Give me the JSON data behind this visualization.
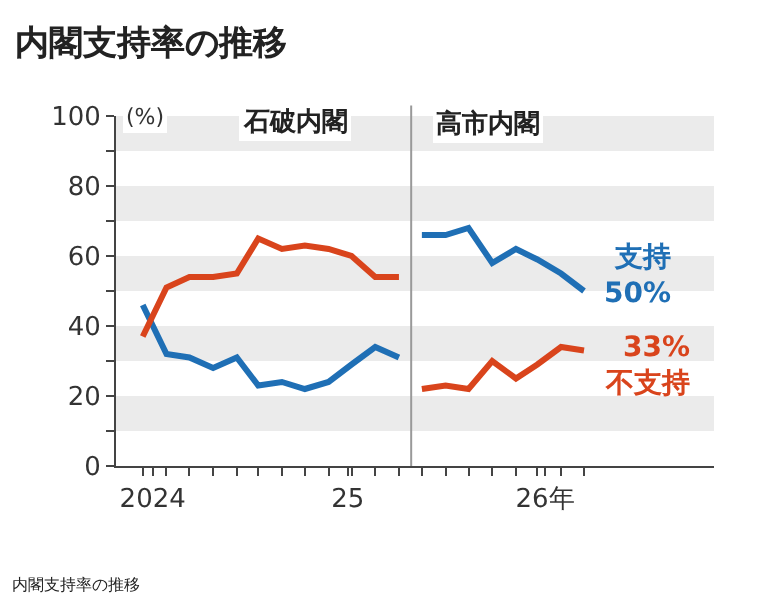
{
  "chart_data": {
    "type": "line",
    "title": "内閣支持率の推移",
    "ylabel": "(%)",
    "series": [
      {
        "color": "#1f6fb5",
        "x": [
          "2024-10-15",
          "2024-11-15",
          "2024-12-15",
          "2025-01-15",
          "2025-02-15",
          "2025-03-15",
          "2025-04-15",
          "2025-05-15",
          "2025-06-15",
          "2025-07-15",
          "2025-08-15",
          "2025-09-15"
        ],
        "values": [
          46,
          32,
          31,
          28,
          31,
          23,
          24,
          22,
          24,
          29,
          34,
          31
        ]
      },
      {
        "color": "#d9441c",
        "x": [
          "2024-10-15",
          "2024-11-15",
          "2024-12-15",
          "2025-01-15",
          "2025-02-15",
          "2025-03-15",
          "2025-04-15",
          "2025-05-15",
          "2025-06-15",
          "2025-07-15",
          "2025-08-15",
          "2025-09-15"
        ],
        "values": [
          37,
          51,
          54,
          54,
          55,
          65,
          62,
          63,
          62,
          60,
          54,
          54
        ]
      },
      {
        "color": "#1f6fb5",
        "x": [
          "2025-10-15",
          "2025-11-15",
          "2025-12-15",
          "2026-01-15",
          "2026-02-15",
          "2026-03-15",
          "2026-04-15",
          "2026-05-15"
        ],
        "values": [
          66,
          66,
          68,
          58,
          62,
          59,
          55,
          50
        ]
      },
      {
        "color": "#d9441c",
        "x": [
          "2025-10-15",
          "2025-11-15",
          "2025-12-15",
          "2026-01-15",
          "2026-02-15",
          "2026-03-15",
          "2026-04-15",
          "2026-05-15"
        ],
        "values": [
          22,
          23,
          22,
          30,
          25,
          29,
          34,
          33
        ]
      }
    ],
    "xlim": [
      "2024-09-10",
      "2026-11-01"
    ],
    "xticks": [
      {
        "value": "2024-10-15",
        "label": null
      },
      {
        "value": "2024-11-15",
        "label": null
      },
      {
        "value": "2024-12-15",
        "label": null
      },
      {
        "value": "2025-01-15",
        "label": null
      },
      {
        "value": "2025-02-15",
        "label": null
      },
      {
        "value": "2025-03-15",
        "label": null
      },
      {
        "value": "2025-04-15",
        "label": null
      },
      {
        "value": "2025-05-15",
        "label": null
      },
      {
        "value": "2025-06-15",
        "label": null
      },
      {
        "value": "2025-07-15",
        "label": null
      },
      {
        "value": "2025-08-15",
        "label": null
      },
      {
        "value": "2025-09-15",
        "label": null
      },
      {
        "value": "2025-10-15",
        "label": null
      },
      {
        "value": "2025-11-15",
        "label": null
      },
      {
        "value": "2025-12-15",
        "label": null
      },
      {
        "value": "2026-01-15",
        "label": null
      },
      {
        "value": "2026-02-15",
        "label": null
      },
      {
        "value": "2026-03-15",
        "label": null
      },
      {
        "value": "2026-04-15",
        "label": null
      },
      {
        "value": "2026-05-15",
        "label": null
      },
      {
        "value": "2024-10-28",
        "label": "2024"
      },
      {
        "value": "2025-07-10",
        "label": "25"
      },
      {
        "value": "2026-03-25",
        "label": "26年"
      }
    ],
    "ylim": [
      0,
      100
    ],
    "yticks": [
      0,
      {
        "value": 10,
        "label": null
      },
      20,
      {
        "value": 30,
        "label": null
      },
      40,
      {
        "value": 50,
        "label": null
      },
      60,
      {
        "value": 70,
        "label": null
      },
      80,
      {
        "value": 90,
        "label": null
      },
      100
    ],
    "bands": [
      {
        "axis": "y",
        "from": 10,
        "to": 20,
        "color": "#ebebeb"
      },
      {
        "axis": "y",
        "from": 30,
        "to": 40,
        "color": "#ebebeb"
      },
      {
        "axis": "y",
        "from": 50,
        "to": 60,
        "color": "#ebebeb"
      },
      {
        "axis": "y",
        "from": 70,
        "to": 80,
        "color": "#ebebeb"
      },
      {
        "axis": "y",
        "from": 90,
        "to": 100,
        "color": "#ebebeb"
      }
    ],
    "ref_lines": [
      {
        "axis": "x",
        "value": "2025-10-01",
        "color": "#999999"
      }
    ],
    "annotations": [
      "石破内閣",
      "高市内閣",
      {
        "text": "支持\n50%",
        "x": "2026-05-15",
        "y": 50
      },
      {
        "text": "33%\n不支持",
        "x": "2026-05-15",
        "y": 33
      },
      "内閣支持率の推移"
    ],
    "line_style": "solid",
    "marker": "none"
  }
}
